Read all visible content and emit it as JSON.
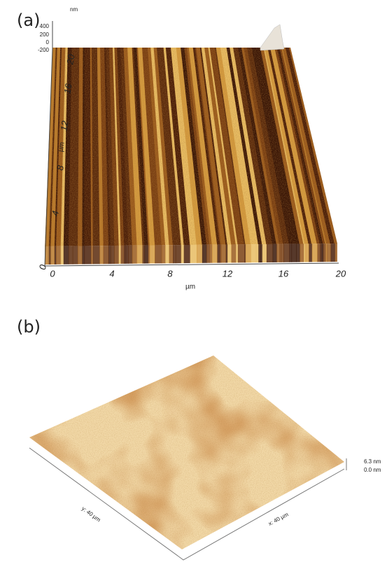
{
  "panels": [
    {
      "label": "(a)",
      "z_axis": {
        "unit": "nm",
        "ticks": [
          "400",
          "200",
          "0",
          "-200"
        ]
      },
      "y_axis": {
        "label": "µm",
        "ticks": [
          "0",
          "4",
          "8",
          "12",
          "16",
          "20"
        ]
      },
      "x_axis": {
        "label": "µm",
        "ticks": [
          "0",
          "4",
          "8",
          "12",
          "16",
          "20"
        ]
      }
    },
    {
      "label": "(b)",
      "z_scale": [
        "6.3 nm",
        "0.0 nm"
      ],
      "y_axis": {
        "label": "y: 40 µm"
      },
      "x_axis": {
        "label": "x: 40 µm"
      }
    }
  ]
}
